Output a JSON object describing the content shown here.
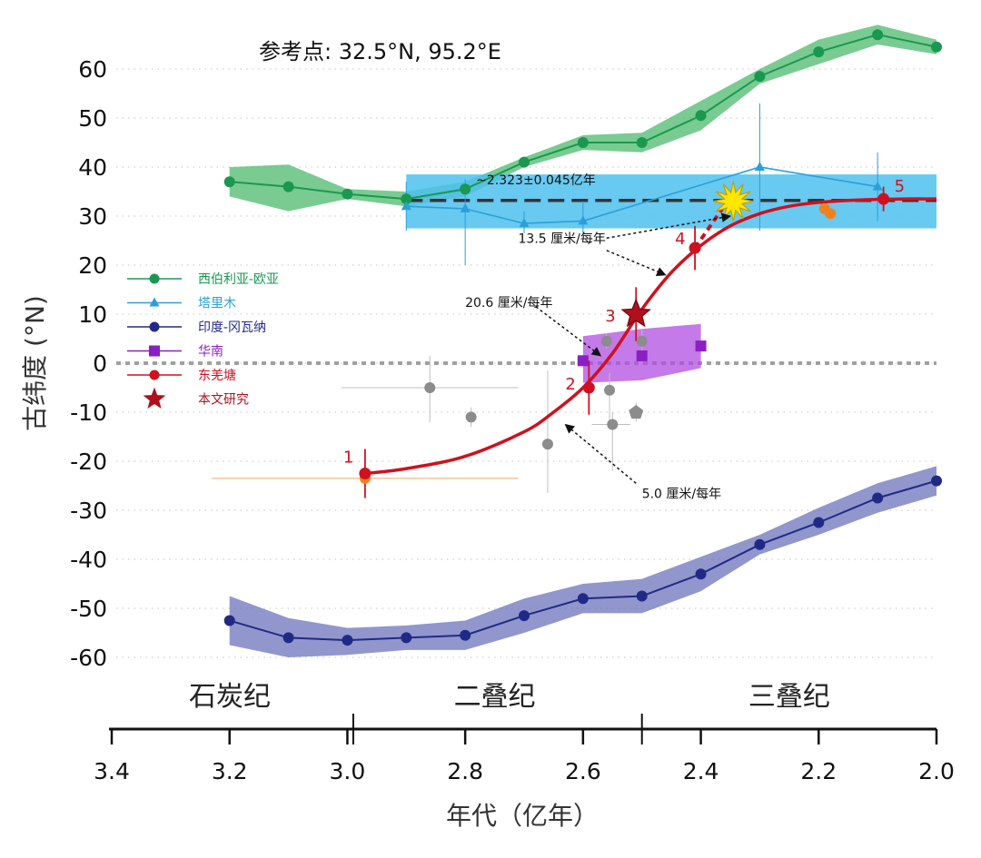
{
  "header": {
    "reference_point": "参考点: 32.5°N, 95.2°E"
  },
  "colors": {
    "siberia": "#1a9850",
    "siberia_band": "#4cb96e",
    "tarim": "#2aa0d8",
    "tarim_band": "#4ec0ee",
    "india": "#202a86",
    "india_band": "#6c73bb",
    "south_china": "#8b1fc4",
    "south_china_band": "#b04ee0",
    "east_qiangtang": "#d0101e",
    "this_study": "#b0101e",
    "published": "#8c8c8c",
    "orange": "#f0821e",
    "star": "#ffe600",
    "dashed": "#333333",
    "equator": "#a0a0a0"
  },
  "chart_data": {
    "type": "line",
    "xlabel": "年代（亿年）",
    "ylabel": "古纬度 (°N)",
    "xlim": [
      3.4,
      2.0
    ],
    "ylim": [
      -65,
      70
    ],
    "x_ticks": [
      "3.4",
      "3.2",
      "3.0",
      "2.8",
      "2.6",
      "2.4",
      "2.2",
      "2.0"
    ],
    "y_ticks": [
      "60",
      "50",
      "40",
      "30",
      "20",
      "10",
      "0",
      "-10",
      "-20",
      "-30",
      "-40",
      "-50",
      "-60"
    ],
    "x_tick_values": [
      3.4,
      3.2,
      3.0,
      2.8,
      2.6,
      2.4,
      2.2,
      2.0
    ],
    "y_tick_values": [
      60,
      50,
      40,
      30,
      20,
      10,
      0,
      -10,
      -20,
      -30,
      -40,
      -50,
      -60
    ],
    "grid": "horizontal dotted",
    "legend_position": "left",
    "eras": [
      {
        "name": "石炭纪",
        "center": 3.2
      },
      {
        "name": "二叠纪",
        "center": 2.75
      },
      {
        "name": "三叠纪",
        "center": 2.25
      }
    ],
    "era_boundaries": [
      2.99,
      2.5
    ],
    "series": [
      {
        "name": "西伯利亚-欧亚",
        "x": [
          3.2,
          3.1,
          3.0,
          2.9,
          2.8,
          2.7,
          2.6,
          2.5,
          2.4,
          2.3,
          2.2,
          2.1,
          2.0
        ],
        "values": [
          37,
          36,
          34.5,
          33.5,
          35.5,
          41,
          45,
          45,
          50.5,
          58.5,
          63.5,
          67,
          64.5
        ],
        "upper": [
          40,
          40.5,
          35.5,
          35,
          37,
          42,
          46.5,
          47,
          53.5,
          60,
          66,
          69,
          66
        ],
        "lower": [
          34,
          31,
          33.5,
          32,
          34,
          40,
          43.5,
          43,
          47.5,
          57,
          61,
          65,
          63
        ]
      },
      {
        "name": "塔里木",
        "x": [
          2.9,
          2.8,
          2.7,
          2.6,
          2.3,
          2.1
        ],
        "values": [
          32,
          31.5,
          28.5,
          29,
          40,
          36
        ],
        "err_up": [
          37,
          37.5,
          31,
          33,
          53,
          43
        ],
        "err_low": [
          27,
          20,
          26.5,
          26,
          27,
          29
        ],
        "box": {
          "x": [
            2.9,
            2.0
          ],
          "y": [
            27.5,
            38.5
          ]
        }
      },
      {
        "name": "印度-冈瓦纳",
        "x": [
          3.2,
          3.1,
          3.0,
          2.9,
          2.8,
          2.7,
          2.6,
          2.5,
          2.4,
          2.3,
          2.2,
          2.1,
          2.0
        ],
        "values": [
          -52.5,
          -56,
          -56.5,
          -56,
          -55.5,
          -51.5,
          -48,
          -47.5,
          -43,
          -37,
          -32.5,
          -27.5,
          -24
        ],
        "upper": [
          -47.5,
          -52,
          -54,
          -53.5,
          -52.5,
          -48,
          -45,
          -44,
          -39.5,
          -35,
          -29.5,
          -24.5,
          -21
        ],
        "lower": [
          -57.5,
          -60,
          -59.5,
          -58.5,
          -58.5,
          -55,
          -51,
          -51,
          -46.5,
          -39,
          -35,
          -30.5,
          -27
        ]
      },
      {
        "name": "华南",
        "x": [
          2.6,
          2.5,
          2.4
        ],
        "values": [
          0.5,
          1.5,
          3.5
        ],
        "band_x": [
          2.6,
          2.5,
          2.4
        ],
        "band_upper": [
          5.5,
          7,
          8
        ],
        "band_lower": [
          -4,
          -3.5,
          -1
        ]
      },
      {
        "name": "东羌塘",
        "x": [
          2.97,
          2.59,
          2.51,
          2.41,
          2.09
        ],
        "values": [
          -22.5,
          -5,
          10,
          23.5,
          33.5
        ],
        "labels": [
          "1",
          "2",
          "3",
          "4",
          "5"
        ],
        "err": [
          5,
          5.5,
          5.5,
          4.5,
          2.5
        ],
        "curve_x": [
          2.97,
          2.9,
          2.8,
          2.7,
          2.65,
          2.6,
          2.55,
          2.5,
          2.45,
          2.4,
          2.35,
          2.3,
          2.25,
          2.2,
          2.15,
          2.1,
          2.05,
          2.0
        ],
        "curve_y": [
          -22.5,
          -21.5,
          -19,
          -14,
          -10,
          -5,
          2,
          11,
          18.5,
          24,
          28,
          30.5,
          32,
          32.8,
          33.2,
          33.4,
          33.5,
          33.5
        ]
      },
      {
        "name": "本文研究",
        "x": [
          2.51
        ],
        "values": [
          10
        ]
      }
    ],
    "published_points": {
      "x": [
        2.86,
        2.79,
        2.66,
        2.56,
        2.555,
        2.55,
        2.51,
        2.5
      ],
      "y": [
        -5,
        -11,
        -16.5,
        4.5,
        -5.5,
        -12.5,
        -10,
        4.5
      ],
      "err_y": [
        [
          -12,
          1.5
        ],
        [
          -13,
          -9
        ],
        [
          -26.5,
          -1.5
        ],
        [
          3,
          6
        ],
        [
          -13,
          -2
        ],
        [
          -22,
          -10
        ],
        [
          -12,
          -8
        ],
        [
          2,
          7
        ]
      ],
      "err_x": [
        [
          3.01,
          2.71
        ],
        null,
        null,
        null,
        null,
        [
          2.585,
          2.52
        ],
        null,
        null
      ]
    },
    "orange_points": {
      "x": [
        2.97,
        2.19,
        2.18
      ],
      "y": [
        -23.5,
        31.5,
        30.5
      ]
    },
    "reference_line": {
      "y": 33.2,
      "x": [
        2.9,
        2.0
      ]
    },
    "collision": {
      "x": 2.345,
      "y": 33,
      "label": "~2.323±0.045亿年"
    },
    "rate_annotations": [
      {
        "label": "13.5 厘米/每年",
        "text_x": 2.71,
        "text_y": 24.5
      },
      {
        "label": "20.6 厘米/每年",
        "text_x": 2.8,
        "text_y": 11.5
      },
      {
        "label": "5.0 厘米/每年",
        "text_x": 2.5,
        "text_y": -27.5
      }
    ]
  }
}
